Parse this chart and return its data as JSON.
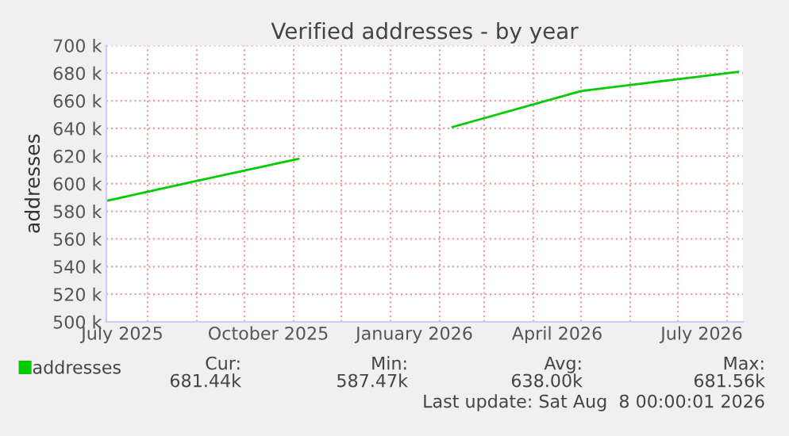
{
  "chart_data": {
    "type": "line",
    "title": "Verified addresses - by year",
    "ylabel": "addresses",
    "x": [
      "2025-07-06",
      "2025-09-01",
      "2025-11-04",
      "2025-12-20",
      "2026-02-09",
      "2026-05-01",
      "2026-08-08"
    ],
    "series": [
      {
        "name": "addresses",
        "color": "#00cc00",
        "values": [
          587500,
          602000,
          618000,
          null,
          641000,
          667000,
          681000
        ]
      }
    ],
    "xlim": [
      "2025-07-06",
      "2026-08-11"
    ],
    "xticks": [
      {
        "value": "2025-07-16",
        "label": "July 2025"
      },
      {
        "value": "2025-10-16",
        "label": "October 2025"
      },
      {
        "value": "2026-01-16",
        "label": "January 2026"
      },
      {
        "value": "2026-04-16",
        "label": "April 2026"
      },
      {
        "value": "2026-07-16",
        "label": "July 2026"
      },
      {
        "value": "2025-08-01",
        "label": null
      },
      {
        "value": "2025-09-01",
        "label": null
      },
      {
        "value": "2025-10-01",
        "label": null
      },
      {
        "value": "2025-11-01",
        "label": null
      },
      {
        "value": "2025-12-01",
        "label": null
      },
      {
        "value": "2026-01-01",
        "label": null
      },
      {
        "value": "2026-02-01",
        "label": null
      },
      {
        "value": "2026-03-01",
        "label": null
      },
      {
        "value": "2026-04-01",
        "label": null
      },
      {
        "value": "2026-05-01",
        "label": null
      },
      {
        "value": "2026-06-01",
        "label": null
      },
      {
        "value": "2026-07-01",
        "label": null
      },
      {
        "value": "2026-08-01",
        "label": null
      }
    ],
    "ylim": [
      500000,
      700000
    ],
    "yticks": [
      {
        "value": 500000,
        "label": "500 k"
      },
      {
        "value": 520000,
        "label": "520 k"
      },
      {
        "value": 540000,
        "label": "540 k"
      },
      {
        "value": 560000,
        "label": "560 k"
      },
      {
        "value": 580000,
        "label": "580 k"
      },
      {
        "value": 600000,
        "label": "600 k"
      },
      {
        "value": 620000,
        "label": "620 k"
      },
      {
        "value": 640000,
        "label": "640 k"
      },
      {
        "value": 660000,
        "label": "660 k"
      },
      {
        "value": 680000,
        "label": "680 k"
      },
      {
        "value": 700000,
        "label": "700 k"
      }
    ],
    "grid": true,
    "legend": "bottom left",
    "line_style": "solid",
    "marker": "none",
    "annotations": [
      "Cur:",
      "681.44k",
      "Min:",
      "587.47k",
      "Avg:",
      "638.00k",
      "Max:",
      "681.56k",
      "Last update: Sat Aug  8 00:00:01 2026"
    ]
  }
}
